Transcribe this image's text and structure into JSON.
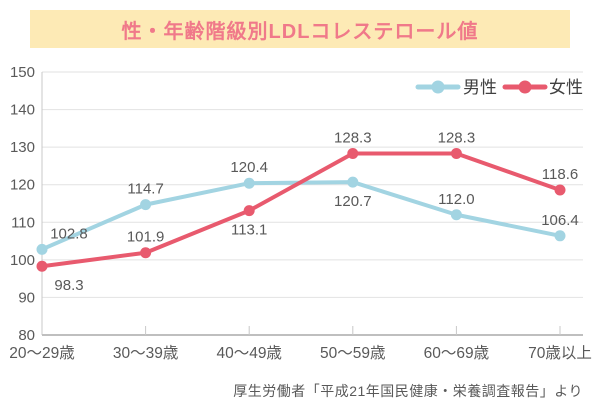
{
  "title": "性・年齢階級別LDLコレステロール値",
  "source": "厚生労働者「平成21年国民健康・栄養調査報告」より",
  "colors": {
    "banner_bg": "#fdeab5",
    "title_text": "#f0798a",
    "male": "#a2d4e2",
    "female": "#e85a6e",
    "grid": "#e2e2e2",
    "axis_y": "#c8c8c8",
    "axis_x": "#bfbfbf",
    "tick": "#c8c8c8",
    "value_label_text": "#595959",
    "axis_label_text": "#595959",
    "legend_text": "#404040"
  },
  "legend": {
    "items": [
      {
        "label": "男性",
        "series": "male"
      },
      {
        "label": "女性",
        "series": "female"
      }
    ],
    "position": "top-right"
  },
  "chart_data": {
    "type": "line",
    "title": "性・年齢階級別LDLコレステロール値",
    "categories": [
      "20〜29歳",
      "30〜39歳",
      "40〜49歳",
      "50〜59歳",
      "60〜69歳",
      "70歳以上"
    ],
    "series": [
      {
        "name": "男性",
        "key": "male",
        "color": "#a2d4e2",
        "values": [
          102.8,
          114.7,
          120.4,
          120.7,
          112.0,
          106.4
        ],
        "value_labels": [
          "102.8",
          "114.7",
          "120.4",
          "120.7",
          "112.0",
          "106.4"
        ],
        "label_positions": [
          "above",
          "above",
          "above",
          "below",
          "above",
          "above"
        ]
      },
      {
        "name": "女性",
        "key": "female",
        "color": "#e85a6e",
        "values": [
          98.3,
          101.9,
          113.1,
          128.3,
          128.3,
          118.6
        ],
        "value_labels": [
          "98.3",
          "101.9",
          "113.1",
          "128.3",
          "128.3",
          "118.6"
        ],
        "label_positions": [
          "below",
          "above",
          "below",
          "above",
          "above",
          "above"
        ]
      }
    ],
    "xlabel": "",
    "ylabel": "",
    "ylim": [
      80,
      150
    ],
    "yticks": [
      80,
      90,
      100,
      110,
      120,
      130,
      140,
      150
    ],
    "ytick_labels": [
      "80",
      "90",
      "100",
      "110",
      "120",
      "130",
      "140",
      "150"
    ],
    "grid": "horizontal",
    "legend_position": "top-right"
  }
}
